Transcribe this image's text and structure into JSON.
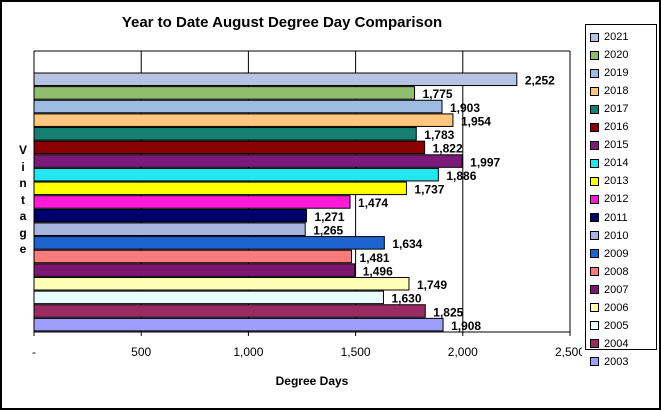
{
  "chart_data": {
    "type": "bar",
    "orientation": "horizontal",
    "title": "Year to Date August Degree Day Comparison",
    "xlabel": "Degree Days",
    "ylabel": "Vintage",
    "xlim": [
      0,
      2500
    ],
    "x_ticks": [
      "-",
      "500",
      "1,000",
      "1,500",
      "2,000",
      "2,500"
    ],
    "gridlines": "vertical",
    "legend_position": "right",
    "categories": [
      "2021",
      "2020",
      "2019",
      "2018",
      "2017",
      "2016",
      "2015",
      "2014",
      "2013",
      "2012",
      "2011",
      "2010",
      "2009",
      "2008",
      "2007",
      "2006",
      "2005",
      "2004",
      "2003"
    ],
    "values": [
      2252,
      1775,
      1903,
      1954,
      1783,
      1822,
      1997,
      1886,
      1737,
      1474,
      1271,
      1265,
      1634,
      1481,
      1496,
      1749,
      1630,
      1825,
      1908
    ],
    "value_labels": [
      "2,252",
      "1,775",
      "1,903",
      "1,954",
      "1,783",
      "1,822",
      "1,997",
      "1,886",
      "1,737",
      "1,474",
      "1,271",
      "1,265",
      "1,634",
      "1,481",
      "1,496",
      "1,749",
      "1,630",
      "1,825",
      "1,908"
    ],
    "colors": [
      "#B7C3E3",
      "#8FBE6E",
      "#9DBBE3",
      "#FFC77D",
      "#147F72",
      "#8B0000",
      "#7B1A78",
      "#22E6F0",
      "#FFFF00",
      "#FF1AD8",
      "#00006B",
      "#A9B5E0",
      "#1E64D0",
      "#FF7A7A",
      "#7E1770",
      "#FFFFB8",
      "#E9FFFF",
      "#9B2A63",
      "#9E9EFF"
    ]
  }
}
